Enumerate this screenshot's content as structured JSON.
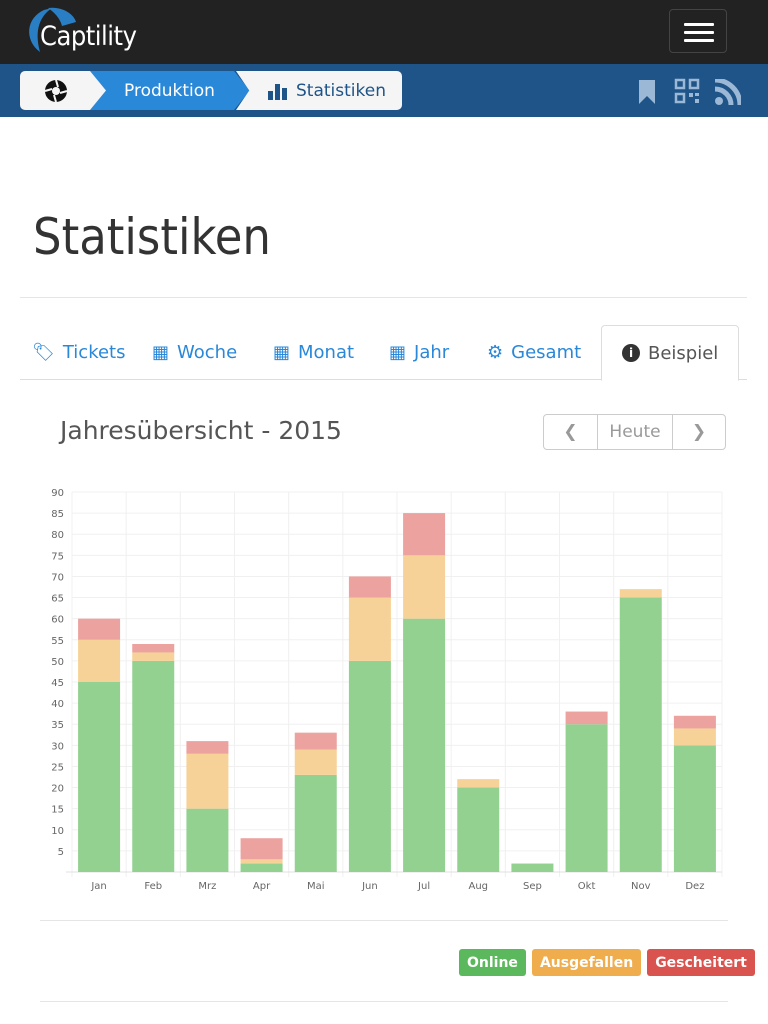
{
  "app": {
    "name": "Captility"
  },
  "breadcrumb": {
    "items": [
      {
        "label": "Produktion"
      },
      {
        "label": "Statistiken"
      }
    ]
  },
  "page": {
    "title": "Statistiken"
  },
  "tabs": [
    {
      "label": "Tickets",
      "icon": "tag-icon"
    },
    {
      "label": "Woche",
      "icon": "calendar-icon"
    },
    {
      "label": "Monat",
      "icon": "calendar-icon"
    },
    {
      "label": "Jahr",
      "icon": "calendar-icon"
    },
    {
      "label": "Gesamt",
      "icon": "gear-icon"
    },
    {
      "label": "Beispiel",
      "icon": "info-icon",
      "active": true
    }
  ],
  "panel": {
    "title": "Jahresübersicht - 2015",
    "today_label": "Heute"
  },
  "legend": [
    {
      "label": "Online",
      "color": "#5cb85c"
    },
    {
      "label": "Ausgefallen",
      "color": "#f0ad4e"
    },
    {
      "label": "Gescheitert",
      "color": "#d9534f"
    }
  ],
  "chart_data": {
    "type": "bar",
    "stacked": true,
    "title": "Jahresübersicht - 2015",
    "categories": [
      "Jan",
      "Feb",
      "Mrz",
      "Apr",
      "Mai",
      "Jun",
      "Jul",
      "Aug",
      "Sep",
      "Okt",
      "Nov",
      "Dez"
    ],
    "ylim": [
      0,
      90
    ],
    "yticks": [
      5,
      10,
      15,
      20,
      25,
      30,
      35,
      40,
      45,
      50,
      55,
      60,
      65,
      70,
      75,
      80,
      85,
      90
    ],
    "series": [
      {
        "name": "Online",
        "color": "#93d191",
        "values": [
          45,
          50,
          15,
          2,
          23,
          50,
          60,
          20,
          2,
          35,
          65,
          30
        ]
      },
      {
        "name": "Ausgefallen",
        "color": "#f7d298",
        "values": [
          10,
          2,
          13,
          1,
          6,
          15,
          15,
          2,
          0,
          0,
          2,
          4
        ]
      },
      {
        "name": "Gescheitert",
        "color": "#eca29e",
        "values": [
          5,
          2,
          3,
          5,
          4,
          5,
          10,
          0,
          0,
          3,
          0,
          3
        ]
      }
    ],
    "grid": true
  }
}
